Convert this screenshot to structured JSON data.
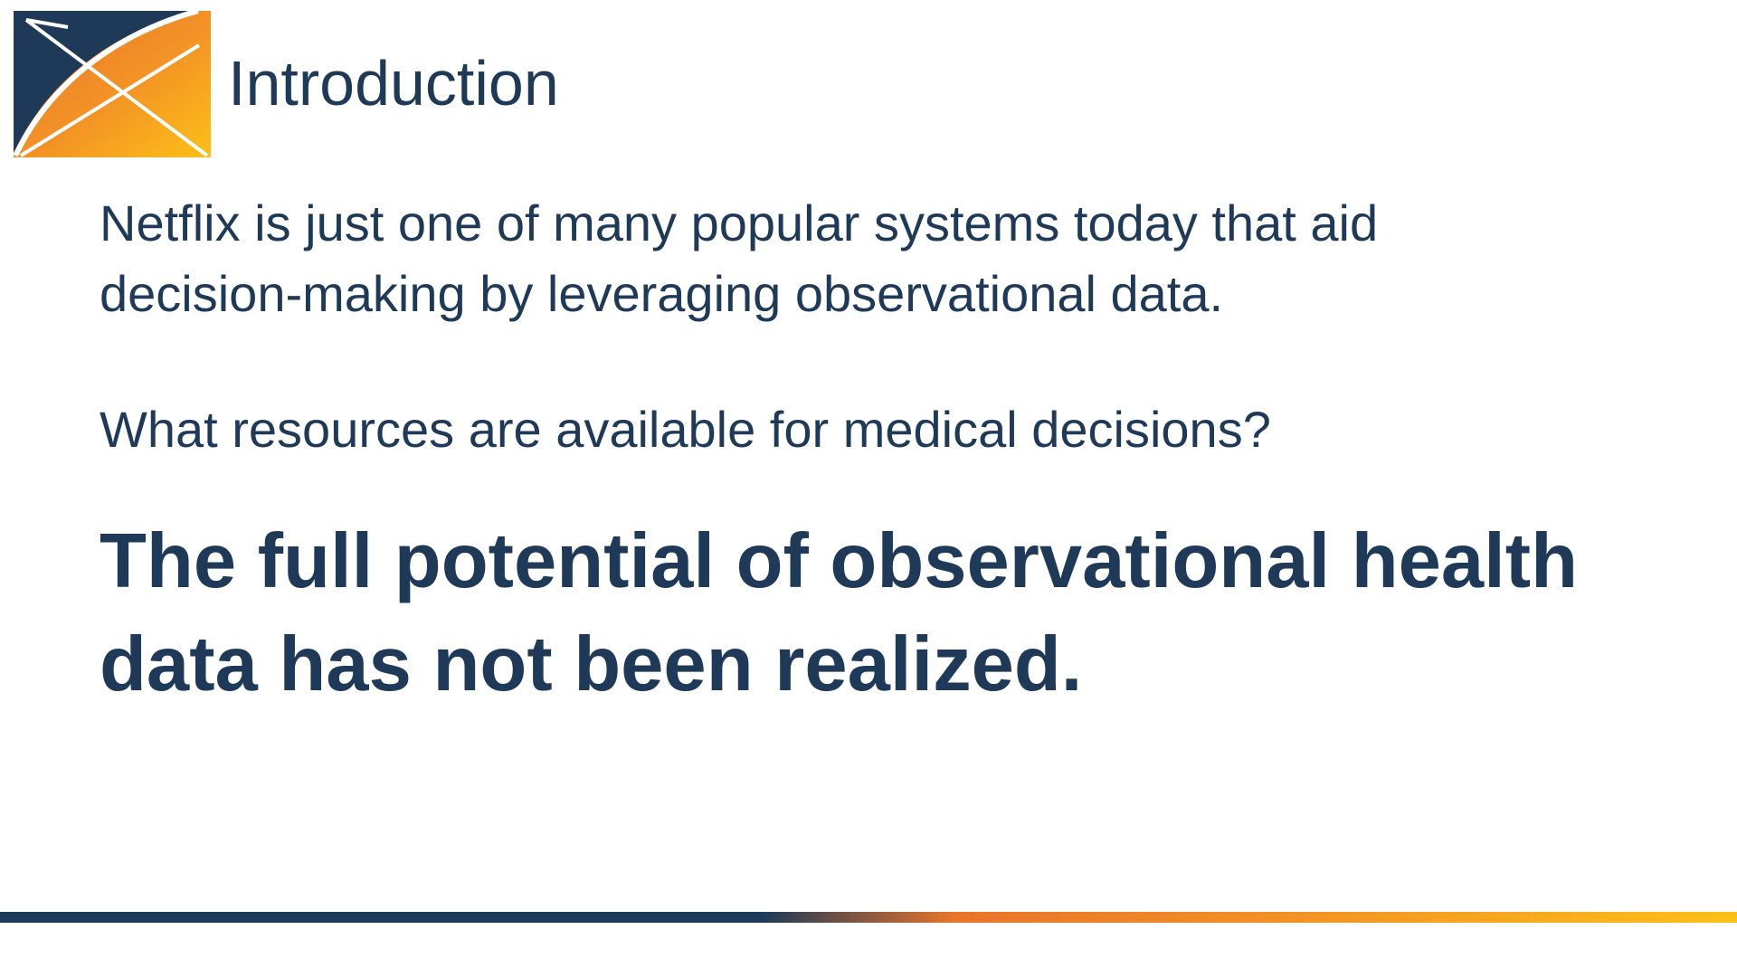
{
  "slide": {
    "title": "Introduction",
    "paragraph_1_line_1": "Netflix is just one of many popular systems today that aid",
    "paragraph_1_line_2": "decision-making by leveraging observational data.",
    "paragraph_2": "What resources are available for medical decisions?",
    "headline_line_1": "The full potential of observational health",
    "headline_line_2": "data has not been realized."
  },
  "theme": {
    "text_color": "#1f3a58",
    "accent_orange": "#f39325",
    "accent_yellow": "#fbc017",
    "navy": "#1f3a58"
  },
  "logo": {
    "icon": "ohdsi-logo"
  }
}
